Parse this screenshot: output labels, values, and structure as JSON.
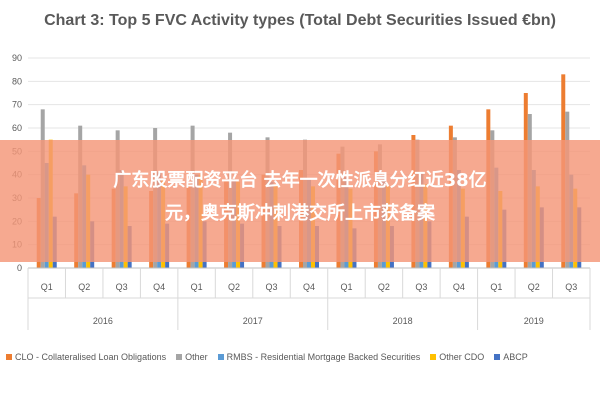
{
  "banner": {
    "line1": "广东股票配资平台 去年一次性派息分红近38亿",
    "line2": "元，奥克斯冲刺港交所上市获备案"
  },
  "chart_data": {
    "type": "bar",
    "title": "Chart 3: Top 5 FVC Activity types (Total Debt Securities Issued €bn)",
    "ylim": [
      0,
      90
    ],
    "yticks": [
      0,
      10,
      20,
      30,
      40,
      50,
      60,
      70,
      80,
      90
    ],
    "grid": true,
    "legend_position": "bottom",
    "categories": [
      "Q1",
      "Q2",
      "Q3",
      "Q4",
      "Q1",
      "Q2",
      "Q3",
      "Q4",
      "Q1",
      "Q2",
      "Q3",
      "Q4",
      "Q1",
      "Q2",
      "Q3"
    ],
    "years": [
      {
        "label": "2016",
        "quarters": 4
      },
      {
        "label": "2017",
        "quarters": 4
      },
      {
        "label": "2018",
        "quarters": 4
      },
      {
        "label": "2019",
        "quarters": 3
      }
    ],
    "series": [
      {
        "name": "CLO - Collateralised Loan Obligations",
        "color": "#ED7D31",
        "values": [
          30,
          32,
          34,
          33,
          36,
          38,
          40,
          42,
          49,
          50,
          57,
          61,
          68,
          75,
          83
        ]
      },
      {
        "name": "Other",
        "color": "#A5A5A5",
        "values": [
          68,
          61,
          59,
          60,
          61,
          58,
          56,
          55,
          52,
          53,
          55,
          56,
          59,
          66,
          67
        ]
      },
      {
        "name": "RMBS - Residential Mortgage Backed Securities",
        "color": "#5B9BD5",
        "values": [
          45,
          44,
          42,
          41,
          40,
          38,
          37,
          38,
          39,
          40,
          41,
          42,
          43,
          42,
          40
        ]
      },
      {
        "name": "Other CDO",
        "color": "#FFC000",
        "values": [
          55,
          40,
          35,
          38,
          40,
          37,
          36,
          35,
          34,
          35,
          36,
          34,
          33,
          35,
          34
        ]
      },
      {
        "name": "ABCP",
        "color": "#4472C4",
        "values": [
          22,
          20,
          18,
          19,
          20,
          19,
          18,
          18,
          17,
          18,
          20,
          22,
          25,
          26,
          26
        ]
      }
    ]
  }
}
